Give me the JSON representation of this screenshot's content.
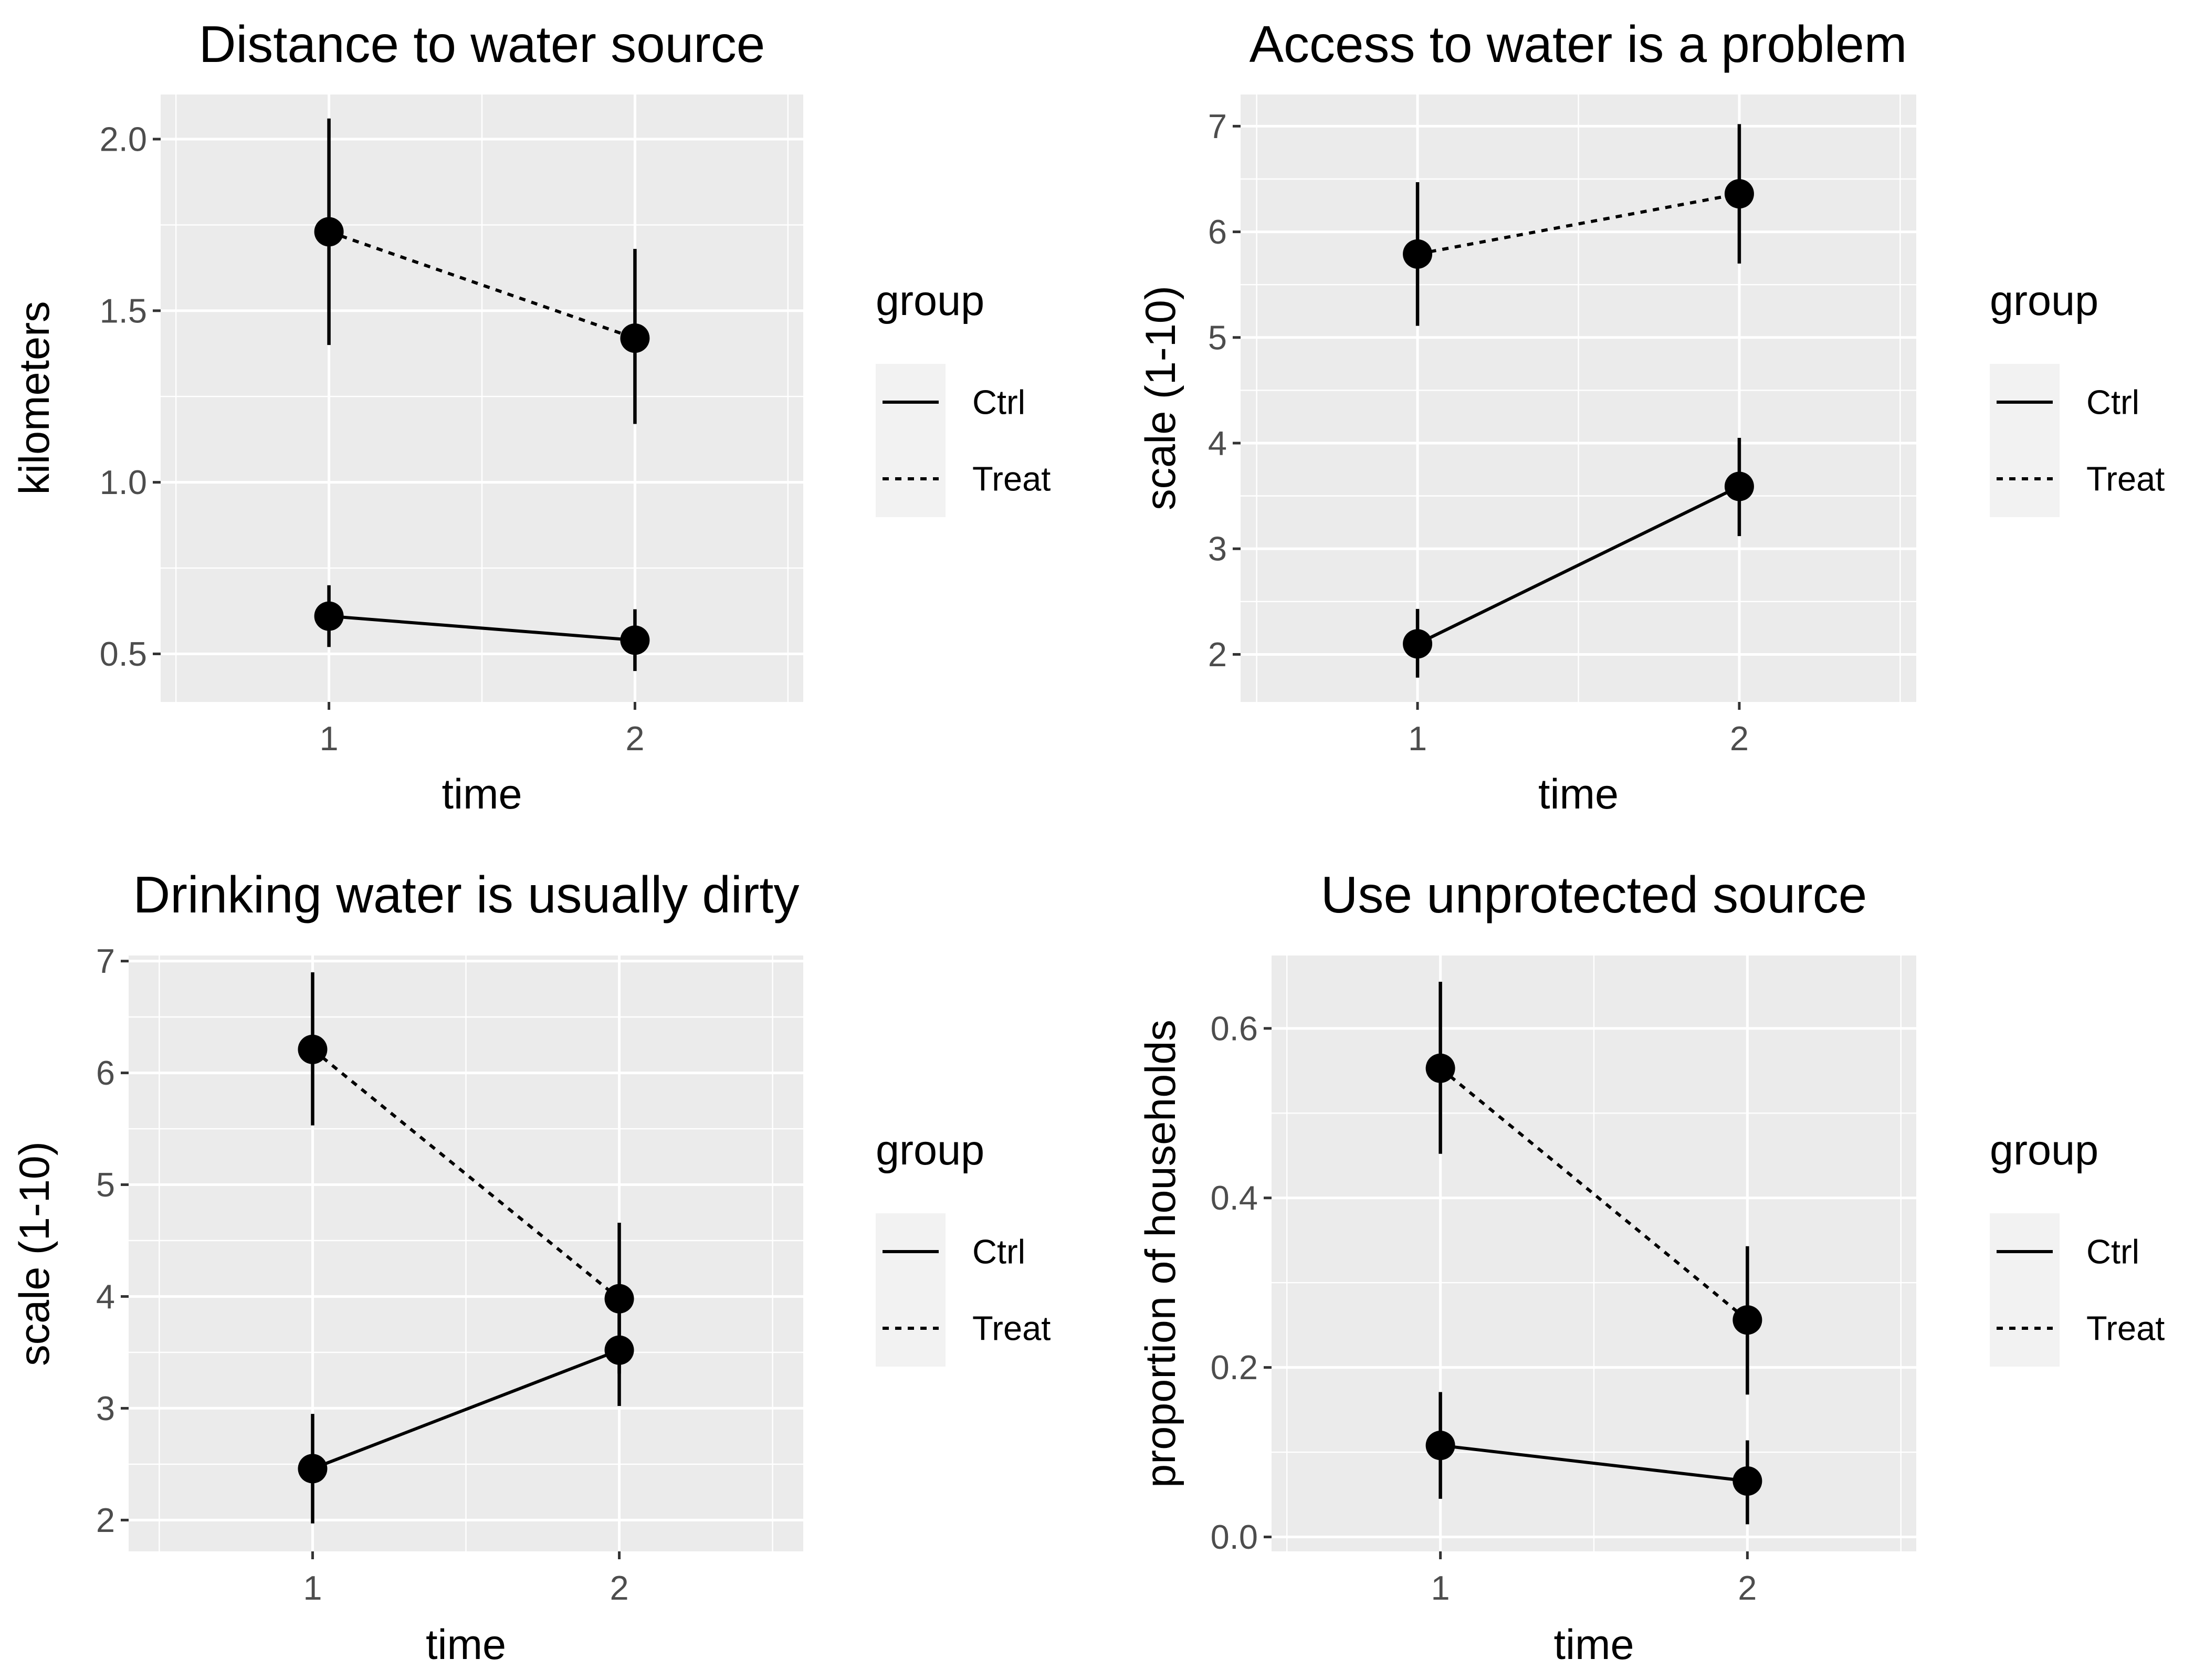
{
  "chart_data": [
    {
      "type": "line",
      "title": "Distance to water source",
      "xlabel": "time",
      "ylabel": "kilometers",
      "x": [
        1,
        2
      ],
      "x_ticks": [
        "1",
        "2"
      ],
      "y_ticks": [
        "0.5",
        "1.0",
        "1.5",
        "2.0"
      ],
      "xlim": [
        0.45,
        2.55
      ],
      "ylim": [
        0.36,
        2.13
      ],
      "grid": true,
      "legend": {
        "title": "group",
        "position": "right",
        "entries": [
          "Ctrl",
          "Treat"
        ]
      },
      "series": [
        {
          "name": "Ctrl",
          "linetype": "solid",
          "y": [
            0.61,
            0.54
          ],
          "ymin": [
            0.52,
            0.45
          ],
          "ymax": [
            0.7,
            0.63
          ]
        },
        {
          "name": "Treat",
          "linetype": "dotted",
          "y": [
            1.73,
            1.42
          ],
          "ymin": [
            1.4,
            1.17
          ],
          "ymax": [
            2.06,
            1.68
          ]
        }
      ]
    },
    {
      "type": "line",
      "title": "Access to water is a problem",
      "xlabel": "time",
      "ylabel": "scale (1-10)",
      "x": [
        1,
        2
      ],
      "x_ticks": [
        "1",
        "2"
      ],
      "y_ticks": [
        "2",
        "3",
        "4",
        "5",
        "6",
        "7"
      ],
      "xlim": [
        0.45,
        2.55
      ],
      "ylim": [
        1.55,
        7.3
      ],
      "grid": true,
      "legend": {
        "title": "group",
        "position": "right",
        "entries": [
          "Ctrl",
          "Treat"
        ]
      },
      "series": [
        {
          "name": "Ctrl",
          "linetype": "solid",
          "y": [
            2.1,
            3.59
          ],
          "ymin": [
            1.78,
            3.12
          ],
          "ymax": [
            2.43,
            4.05
          ]
        },
        {
          "name": "Treat",
          "linetype": "dotted",
          "y": [
            5.79,
            6.36
          ],
          "ymin": [
            5.11,
            5.7
          ],
          "ymax": [
            6.47,
            7.02
          ]
        }
      ]
    },
    {
      "type": "line",
      "title": "Drinking water is usually dirty",
      "xlabel": "time",
      "ylabel": "scale (1-10)",
      "x": [
        1,
        2
      ],
      "x_ticks": [
        "1",
        "2"
      ],
      "y_ticks": [
        "2",
        "3",
        "4",
        "5",
        "6",
        "7"
      ],
      "xlim": [
        0.4,
        2.6
      ],
      "ylim": [
        1.72,
        7.05
      ],
      "grid": true,
      "legend": {
        "title": "group",
        "position": "right",
        "entries": [
          "Ctrl",
          "Treat"
        ]
      },
      "series": [
        {
          "name": "Ctrl",
          "linetype": "solid",
          "y": [
            2.46,
            3.52
          ],
          "ymin": [
            1.97,
            3.02
          ],
          "ymax": [
            2.95,
            4.02
          ]
        },
        {
          "name": "Treat",
          "linetype": "dotted",
          "y": [
            6.21,
            3.98
          ],
          "ymin": [
            5.53,
            3.31
          ],
          "ymax": [
            6.9,
            4.66
          ]
        }
      ]
    },
    {
      "type": "line",
      "title": "Use unprotected source",
      "xlabel": "time",
      "ylabel": "proportion of households",
      "x": [
        1,
        2
      ],
      "x_ticks": [
        "1",
        "2"
      ],
      "y_ticks": [
        "0.0",
        "0.2",
        "0.4",
        "0.6"
      ],
      "xlim": [
        0.45,
        2.55
      ],
      "ylim": [
        -0.017,
        0.686
      ],
      "grid": true,
      "legend": {
        "title": "group",
        "position": "right",
        "entries": [
          "Ctrl",
          "Treat"
        ]
      },
      "series": [
        {
          "name": "Ctrl",
          "linetype": "solid",
          "y": [
            0.108,
            0.066
          ],
          "ymin": [
            0.045,
            0.015
          ],
          "ymax": [
            0.171,
            0.114
          ]
        },
        {
          "name": "Treat",
          "linetype": "dotted",
          "y": [
            0.553,
            0.256
          ],
          "ymin": [
            0.452,
            0.168
          ],
          "ymax": [
            0.655,
            0.343
          ]
        }
      ]
    }
  ]
}
